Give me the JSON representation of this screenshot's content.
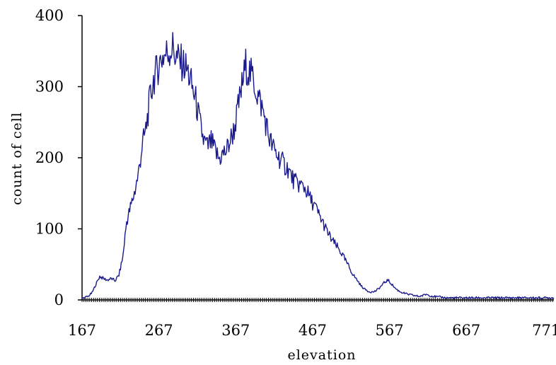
{
  "chart_data": {
    "type": "line",
    "title": "",
    "xlabel": "elevation",
    "ylabel": "count of cell",
    "xlim": [
      167,
      781
    ],
    "ylim": [
      0,
      400
    ],
    "x_ticks": [
      167,
      267,
      367,
      467,
      567,
      667,
      771
    ],
    "x_tick_labels": [
      "167",
      "267",
      "367",
      "467",
      "567",
      "667",
      "771"
    ],
    "y_ticks": [
      0,
      100,
      200,
      300,
      400
    ],
    "y_tick_labels": [
      "0",
      "100",
      "200",
      "300",
      "400"
    ],
    "grid": false,
    "legend": "none",
    "series": [
      {
        "color": "#1a1a8c",
        "x": [
          167,
          175,
          180,
          185,
          190,
          195,
          200,
          205,
          210,
          215,
          220,
          225,
          230,
          235,
          240,
          245,
          250,
          255,
          260,
          265,
          270,
          275,
          280,
          285,
          290,
          295,
          300,
          305,
          310,
          315,
          320,
          325,
          330,
          335,
          340,
          345,
          350,
          355,
          360,
          365,
          370,
          375,
          380,
          385,
          390,
          395,
          400,
          405,
          410,
          415,
          420,
          425,
          430,
          435,
          440,
          445,
          450,
          455,
          460,
          465,
          470,
          475,
          480,
          485,
          490,
          495,
          500,
          505,
          510,
          515,
          520,
          525,
          530,
          535,
          540,
          545,
          550,
          555,
          560,
          565,
          570,
          575,
          580,
          585,
          590,
          595,
          600,
          605,
          610,
          615,
          620,
          625,
          630,
          635,
          640,
          645,
          650,
          655,
          660,
          665,
          670,
          675,
          680,
          685,
          690,
          695,
          700,
          710,
          720,
          730,
          740,
          750,
          760,
          770,
          781
        ],
        "y": [
          2,
          5,
          10,
          22,
          33,
          30,
          28,
          30,
          27,
          35,
          60,
          110,
          130,
          150,
          175,
          215,
          240,
          280,
          310,
          325,
          340,
          345,
          350,
          355,
          340,
          335,
          330,
          320,
          300,
          280,
          250,
          225,
          215,
          222,
          210,
          198,
          205,
          210,
          225,
          240,
          270,
          300,
          330,
          320,
          310,
          290,
          275,
          255,
          230,
          215,
          205,
          198,
          190,
          185,
          172,
          165,
          162,
          160,
          152,
          140,
          132,
          120,
          110,
          98,
          88,
          80,
          73,
          65,
          55,
          45,
          35,
          28,
          20,
          15,
          12,
          11,
          13,
          18,
          24,
          28,
          22,
          16,
          12,
          10,
          8,
          7,
          6,
          5,
          6,
          8,
          6,
          5,
          4,
          4,
          3,
          3,
          3,
          3,
          3,
          3,
          3,
          3,
          3,
          3,
          3,
          3,
          3,
          3,
          3,
          3,
          3,
          3,
          3,
          3,
          3
        ]
      }
    ]
  }
}
